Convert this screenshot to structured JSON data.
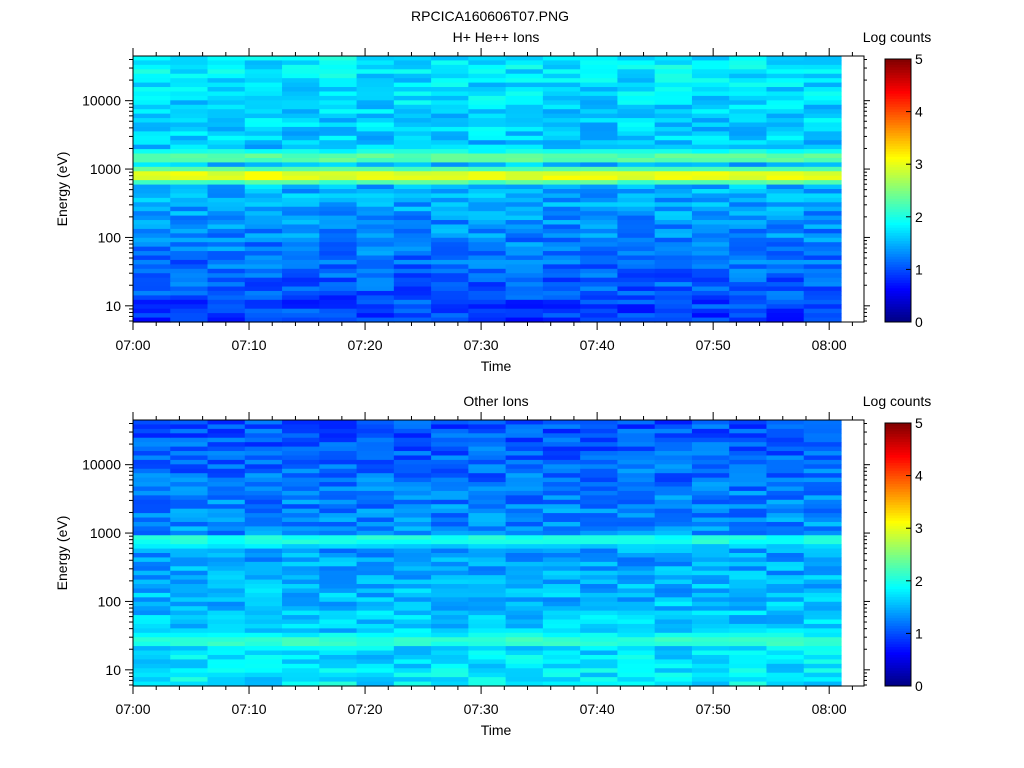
{
  "figure_title": "RPCICA160606T07.PNG",
  "chart_data": [
    {
      "type": "heatmap",
      "title": "H+ He++ Ions",
      "xlabel": "Time",
      "ylabel": "Energy (eV)",
      "x_ticks": [
        "07:00",
        "07:10",
        "07:20",
        "07:30",
        "07:40",
        "07:50",
        "08:00"
      ],
      "y_ticks": [
        "10",
        "100",
        "1000",
        "10000"
      ],
      "y_scale": "log",
      "ylim_eV": [
        5.8,
        45000
      ],
      "xlim": [
        "07:00",
        "08:03"
      ],
      "colorbar": {
        "label": "Log counts",
        "ticks": [
          "0",
          "1",
          "2",
          "3",
          "4",
          "5"
        ],
        "range": [
          0,
          5
        ],
        "colormap": "jet"
      },
      "bands": [
        {
          "energy_eV": 800,
          "log_counts": 3.0,
          "note": "strong band"
        },
        {
          "energy_eV": 1500,
          "log_counts": 2.3
        }
      ],
      "background_log_counts": {
        "low_energy": 0.9,
        "mid_energy": 1.5,
        "high_energy": 1.8
      }
    },
    {
      "type": "heatmap",
      "title": "Other Ions",
      "xlabel": "Time",
      "ylabel": "Energy (eV)",
      "x_ticks": [
        "07:00",
        "07:10",
        "07:20",
        "07:30",
        "07:40",
        "07:50",
        "08:00"
      ],
      "y_ticks": [
        "10",
        "100",
        "1000",
        "10000"
      ],
      "y_scale": "log",
      "ylim_eV": [
        5.8,
        45000
      ],
      "xlim": [
        "07:00",
        "08:03"
      ],
      "colorbar": {
        "label": "Log counts",
        "ticks": [
          "0",
          "1",
          "2",
          "3",
          "4",
          "5"
        ],
        "range": [
          0,
          5
        ],
        "colormap": "jet"
      },
      "bands": [
        {
          "energy_eV": 780,
          "log_counts": 2.0
        },
        {
          "energy_eV": 27,
          "log_counts": 2.1
        }
      ],
      "background_log_counts": {
        "low_energy": 1.8,
        "mid_energy": 1.4,
        "high_energy": 1.0
      }
    }
  ]
}
